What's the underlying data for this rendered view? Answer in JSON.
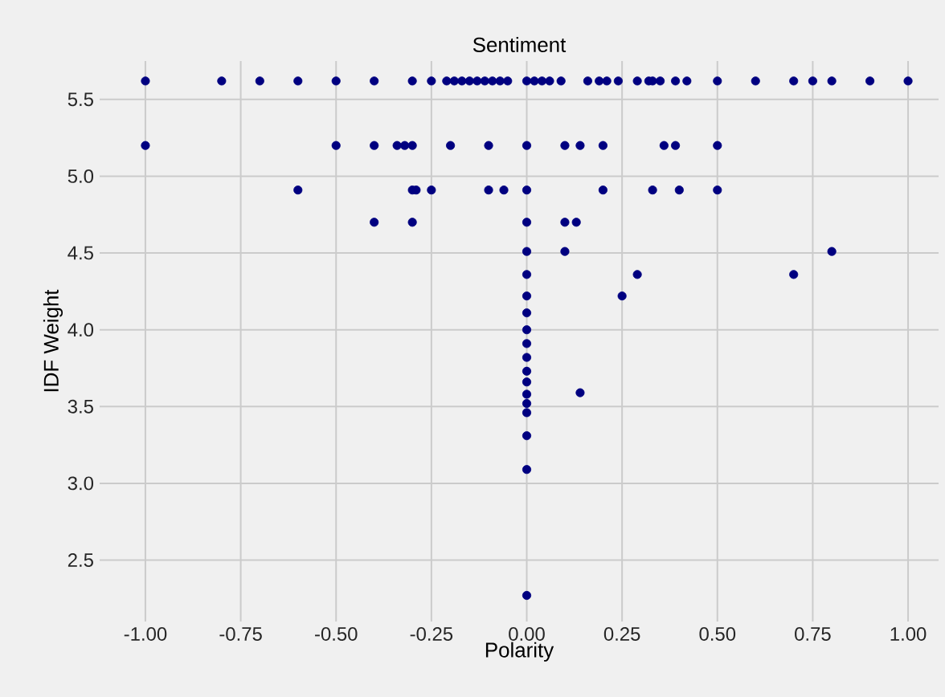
{
  "chart_data": {
    "type": "scatter",
    "title": "Sentiment",
    "xlabel": "Polarity",
    "ylabel": "IDF Weight",
    "xlim": [
      -1.12,
      1.08
    ],
    "ylim": [
      2.1,
      5.75
    ],
    "xticks": [
      {
        "value": -1,
        "label": "-1.00"
      },
      {
        "value": -0.75,
        "label": "-0.75"
      },
      {
        "value": -0.5,
        "label": "-0.50"
      },
      {
        "value": -0.25,
        "label": "-0.25"
      },
      {
        "value": 0,
        "label": "0.00"
      },
      {
        "value": 0.25,
        "label": "0.25"
      },
      {
        "value": 0.5,
        "label": "0.50"
      },
      {
        "value": 0.75,
        "label": "0.75"
      },
      {
        "value": 1,
        "label": "1.00"
      }
    ],
    "yticks": [
      2.5,
      {
        "value": 3,
        "label": "3.0"
      },
      3.5,
      {
        "value": 4,
        "label": "4.0"
      },
      4.5,
      {
        "value": 5,
        "label": "5.0"
      },
      5.5
    ],
    "grid": true,
    "marker": "circle",
    "series": [
      {
        "color": "#000080",
        "x": [
          -1.0,
          -0.8,
          -0.7,
          -0.6,
          -0.5,
          -0.4,
          -0.3,
          -0.25,
          -0.21,
          -0.19,
          -0.17,
          -0.15,
          -0.13,
          -0.11,
          -0.09,
          -0.07,
          -0.05,
          0.0,
          0.02,
          0.04,
          0.06,
          0.09,
          0.16,
          0.19,
          0.21,
          0.24,
          0.29,
          0.32,
          0.33,
          0.35,
          0.39,
          0.42,
          0.5,
          0.6,
          0.7,
          0.75,
          0.8,
          0.9,
          1.0,
          -1.0,
          -0.5,
          -0.4,
          -0.34,
          -0.32,
          -0.3,
          -0.2,
          -0.1,
          0.0,
          0.1,
          0.14,
          0.2,
          0.36,
          0.39,
          0.5,
          -0.6,
          -0.3,
          -0.29,
          -0.25,
          -0.1,
          -0.06,
          0.0,
          0.2,
          0.33,
          0.4,
          0.5,
          -0.4,
          -0.3,
          0.0,
          0.1,
          0.13,
          0.0,
          0.1,
          0.8,
          0.0,
          0.29,
          0.7,
          0.0,
          0.25,
          0.0,
          0.0,
          0.0,
          0.0,
          0.0,
          0.0,
          0.14,
          0.0,
          0.0,
          0.0,
          0.0,
          0.0,
          0.0
        ],
        "values": [
          5.62,
          5.62,
          5.62,
          5.62,
          5.62,
          5.62,
          5.62,
          5.62,
          5.62,
          5.62,
          5.62,
          5.62,
          5.62,
          5.62,
          5.62,
          5.62,
          5.62,
          5.62,
          5.62,
          5.62,
          5.62,
          5.62,
          5.62,
          5.62,
          5.62,
          5.62,
          5.62,
          5.62,
          5.62,
          5.62,
          5.62,
          5.62,
          5.62,
          5.62,
          5.62,
          5.62,
          5.62,
          5.62,
          5.62,
          5.2,
          5.2,
          5.2,
          5.2,
          5.2,
          5.2,
          5.2,
          5.2,
          5.2,
          5.2,
          5.2,
          5.2,
          5.2,
          5.2,
          5.2,
          4.91,
          4.91,
          4.91,
          4.91,
          4.91,
          4.91,
          4.91,
          4.91,
          4.91,
          4.91,
          4.91,
          4.7,
          4.7,
          4.7,
          4.7,
          4.7,
          4.51,
          4.51,
          4.51,
          4.36,
          4.36,
          4.36,
          4.22,
          4.22,
          4.11,
          4.0,
          3.91,
          3.82,
          3.73,
          3.66,
          3.59,
          3.58,
          3.52,
          3.46,
          3.31,
          3.09,
          2.27
        ]
      }
    ]
  }
}
